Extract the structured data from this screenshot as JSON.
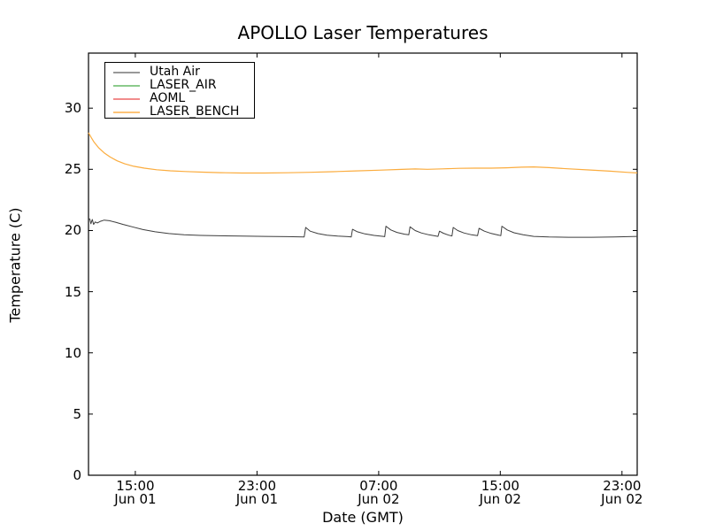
{
  "chart_data": {
    "type": "line",
    "title": "APOLLO Laser Temperatures",
    "xlabel": "Date (GMT)",
    "ylabel": "Temperature (C)",
    "xlim": [
      11.92,
      48.0
    ],
    "ylim": [
      0,
      34.5
    ],
    "grid": false,
    "legend_position": "upper left",
    "x_unit": "hours since Jun 01 00:00 GMT",
    "x_ticks": [
      {
        "value": 15,
        "time": "15:00",
        "date": "Jun 01"
      },
      {
        "value": 23,
        "time": "23:00",
        "date": "Jun 01"
      },
      {
        "value": 31,
        "time": "07:00",
        "date": "Jun 02"
      },
      {
        "value": 39,
        "time": "15:00",
        "date": "Jun 02"
      },
      {
        "value": 47,
        "time": "23:00",
        "date": "Jun 02"
      }
    ],
    "y_ticks": [
      0,
      5,
      10,
      15,
      20,
      25,
      30
    ],
    "legend": [
      {
        "label": "Utah Air",
        "color": "#999999"
      },
      {
        "label": "LASER_AIR",
        "color": "#8ccb8c"
      },
      {
        "label": "AOML",
        "color": "#f18c8c"
      },
      {
        "label": "LASER_BENCH",
        "color": "#fdc377"
      }
    ],
    "series": [
      {
        "name": "Utah Air",
        "color": "#3d3d3d",
        "width": 1,
        "x": [
          11.92,
          12.0,
          12.08,
          12.17,
          12.26,
          12.36,
          12.5,
          12.7,
          12.95,
          13.3,
          13.7,
          14.2,
          14.8,
          15.5,
          16.3,
          17.2,
          18.2,
          19.3,
          20.5,
          22.0,
          23.5,
          25.0,
          26.1,
          26.2,
          26.5,
          27.0,
          27.6,
          28.3,
          29.0,
          29.2,
          29.28,
          29.6,
          30.1,
          30.7,
          31.3,
          31.4,
          31.48,
          31.8,
          32.2,
          32.7,
          32.98,
          33.06,
          33.4,
          33.8,
          34.3,
          34.9,
          35.0,
          35.25,
          35.6,
          35.82,
          35.9,
          36.2,
          36.6,
          37.1,
          37.5,
          37.6,
          37.95,
          38.4,
          38.9,
          39.03,
          39.1,
          39.45,
          39.9,
          40.5,
          41.2,
          42.2,
          43.5,
          45.0,
          46.5,
          48.0
        ],
        "y": [
          20.9,
          20.95,
          20.55,
          20.9,
          20.5,
          20.7,
          20.62,
          20.75,
          20.85,
          20.8,
          20.68,
          20.5,
          20.3,
          20.08,
          19.9,
          19.75,
          19.65,
          19.6,
          19.57,
          19.55,
          19.52,
          19.5,
          19.48,
          20.25,
          19.95,
          19.75,
          19.62,
          19.55,
          19.5,
          19.48,
          20.1,
          19.9,
          19.72,
          19.6,
          19.52,
          19.5,
          20.35,
          20.05,
          19.85,
          19.7,
          19.65,
          20.3,
          20.0,
          19.8,
          19.65,
          19.52,
          19.95,
          19.78,
          19.62,
          19.56,
          20.25,
          20.0,
          19.8,
          19.65,
          19.58,
          20.18,
          19.95,
          19.76,
          19.62,
          19.58,
          20.35,
          20.05,
          19.82,
          19.65,
          19.52,
          19.47,
          19.45,
          19.45,
          19.47,
          19.52
        ]
      },
      {
        "name": "LASER_AIR",
        "color": "#8ccb8c",
        "width": 1,
        "x": [],
        "y": []
      },
      {
        "name": "AOML",
        "color": "#f18c8c",
        "width": 1,
        "x": [],
        "y": []
      },
      {
        "name": "LASER_BENCH",
        "color": "#fbac3e",
        "width": 1.2,
        "x": [
          11.92,
          12.1,
          12.3,
          12.6,
          12.95,
          13.35,
          13.8,
          14.3,
          14.9,
          15.6,
          16.4,
          17.3,
          18.3,
          19.4,
          20.6,
          22.0,
          23.5,
          25.0,
          26.5,
          28.0,
          29.5,
          31.0,
          32.3,
          33.4,
          34.2,
          35.2,
          36.3,
          37.3,
          38.4,
          39.4,
          40.4,
          41.2,
          42.2,
          43.4,
          44.8,
          46.2,
          47.4,
          48.0
        ],
        "y": [
          28.0,
          27.6,
          27.2,
          26.75,
          26.35,
          26.0,
          25.7,
          25.45,
          25.25,
          25.1,
          24.97,
          24.88,
          24.82,
          24.77,
          24.73,
          24.7,
          24.7,
          24.72,
          24.76,
          24.81,
          24.87,
          24.93,
          24.99,
          25.03,
          25.0,
          25.04,
          25.08,
          25.1,
          25.1,
          25.13,
          25.18,
          25.2,
          25.14,
          25.05,
          24.95,
          24.85,
          24.75,
          24.71
        ]
      }
    ]
  }
}
